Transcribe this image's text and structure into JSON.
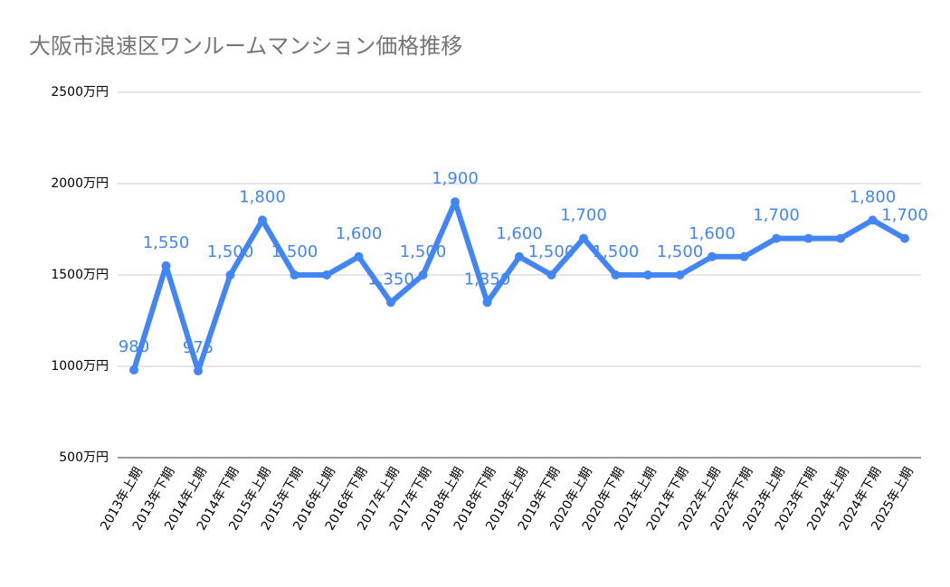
{
  "chart_data": {
    "type": "line",
    "title": "大阪市浪速区ワンルームマンション価格推移",
    "categories": [
      "2013年上期",
      "2013年下期",
      "2014年上期",
      "2014年下期",
      "2015年上期",
      "2015年下期",
      "2016年上期",
      "2016年下期",
      "2017年上期",
      "2017年下期",
      "2018年上期",
      "2018年下期",
      "2019年上期",
      "2019年下期",
      "2020年上期",
      "2020年下期",
      "2021年上期",
      "2021年下期",
      "2022年上期",
      "2022年下期",
      "2023年上期",
      "2023年下期",
      "2024年上期",
      "2024年下期",
      "2025年上期"
    ],
    "series": [
      {
        "color": "#4285f4",
        "values": [
          980,
          1550,
          975,
          1500,
          1800,
          1500,
          1500,
          1600,
          1350,
          1500,
          1900,
          1350,
          1600,
          1500,
          1700,
          1500,
          1500,
          1500,
          1600,
          1600,
          1700,
          1700,
          1700,
          1800,
          1700
        ],
        "value_labels": [
          "980",
          "1,550",
          "975",
          "1,500",
          "1,800",
          "1,500",
          null,
          "1,600",
          "1,350",
          "1,500",
          "1,900",
          "1,350",
          "1,600",
          "1,500",
          "1,700",
          "1,500",
          null,
          "1,500",
          "1,600",
          null,
          "1,700",
          null,
          null,
          "1,800",
          "1,700"
        ]
      }
    ],
    "ylim": [
      500,
      2500
    ],
    "yticks": [
      {
        "value": 500,
        "label": "500万円"
      },
      {
        "value": 1000,
        "label": "1000万円"
      },
      {
        "value": 1500,
        "label": "1500万円"
      },
      {
        "value": 2000,
        "label": "2000万円"
      },
      {
        "value": 2500,
        "label": "2500万円"
      }
    ],
    "grid": true
  }
}
